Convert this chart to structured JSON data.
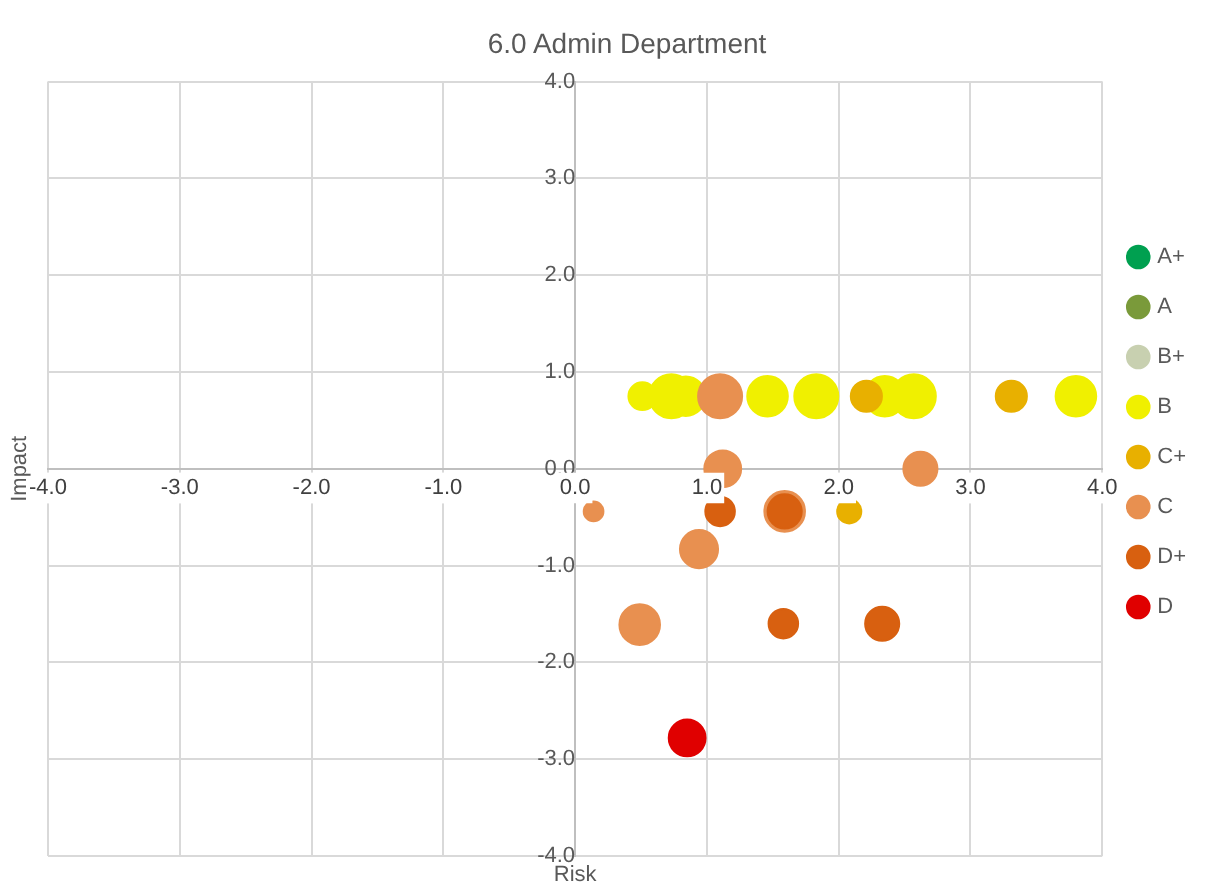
{
  "chart_data": {
    "type": "bubble",
    "title": "6.0 Admin Department",
    "xlabel": "Risk",
    "ylabel": "Impact",
    "xlim": [
      -4,
      4
    ],
    "ylim": [
      -4,
      4
    ],
    "xticks": [
      {
        "value": -4,
        "label": "-4.0"
      },
      {
        "value": -3,
        "label": "-3.0"
      },
      {
        "value": -2,
        "label": "-2.0"
      },
      {
        "value": -1,
        "label": "-1.0"
      },
      {
        "value": 0,
        "label": "0.0"
      },
      {
        "value": 1,
        "label": "1.0"
      },
      {
        "value": 2,
        "label": "2.0"
      },
      {
        "value": 3,
        "label": "3.0"
      },
      {
        "value": 4,
        "label": "4.0"
      }
    ],
    "yticks": [
      {
        "value": -4,
        "label": "-4.0"
      },
      {
        "value": -3,
        "label": "-3.0"
      },
      {
        "value": -2,
        "label": "-2.0"
      },
      {
        "value": -1,
        "label": "-1.0"
      },
      {
        "value": 0,
        "label": "0.0"
      },
      {
        "value": 1,
        "label": "1.0"
      },
      {
        "value": 2,
        "label": "2.0"
      },
      {
        "value": 3,
        "label": "3.0"
      },
      {
        "value": 4,
        "label": "4.0"
      }
    ],
    "grid": true,
    "legend": "right",
    "series": [
      {
        "name": "A+",
        "color": "#00a050"
      },
      {
        "name": "A",
        "color": "#7a9a3a"
      },
      {
        "name": "B+",
        "color": "#c8d0b0"
      },
      {
        "name": "B",
        "color": "#f0f000",
        "x": [
          0.51,
          0.73,
          0.84,
          1.46,
          1.83,
          2.35,
          2.57,
          3.8
        ],
        "values": [
          0.75,
          0.75,
          0.75,
          0.75,
          0.75,
          0.75,
          0.75,
          0.75
        ],
        "sizes": [
          0.4,
          1,
          0.8,
          0.85,
          1,
          0.85,
          1,
          0.85
        ]
      },
      {
        "name": "C+",
        "color": "#e8b000",
        "x": [
          2.21,
          3.31,
          2.08
        ],
        "values": [
          0.75,
          0.75,
          -0.44
        ],
        "sizes": [
          0.5,
          0.5,
          0.3
        ]
      },
      {
        "name": "C",
        "color": "#e89050",
        "x": [
          1.1,
          1.12,
          2.62,
          0.14,
          0.94,
          0.49,
          1.59
        ],
        "values": [
          0.75,
          0,
          0,
          -0.44,
          -0.83,
          -1.61,
          -0.44
        ],
        "sizes": [
          1,
          0.7,
          0.6,
          0.2,
          0.75,
          0.85,
          0.85
        ]
      },
      {
        "name": "D+",
        "color": "#d86010",
        "x": [
          1.1,
          1.59,
          1.58,
          2.33
        ],
        "values": [
          -0.44,
          -0.44,
          -1.6,
          -1.6
        ],
        "sizes": [
          0.45,
          0.6,
          0.45,
          0.6
        ]
      },
      {
        "name": "D",
        "color": "#e00000",
        "x": [
          0.85
        ],
        "values": [
          -2.78
        ],
        "sizes": [
          0.7
        ]
      }
    ]
  }
}
